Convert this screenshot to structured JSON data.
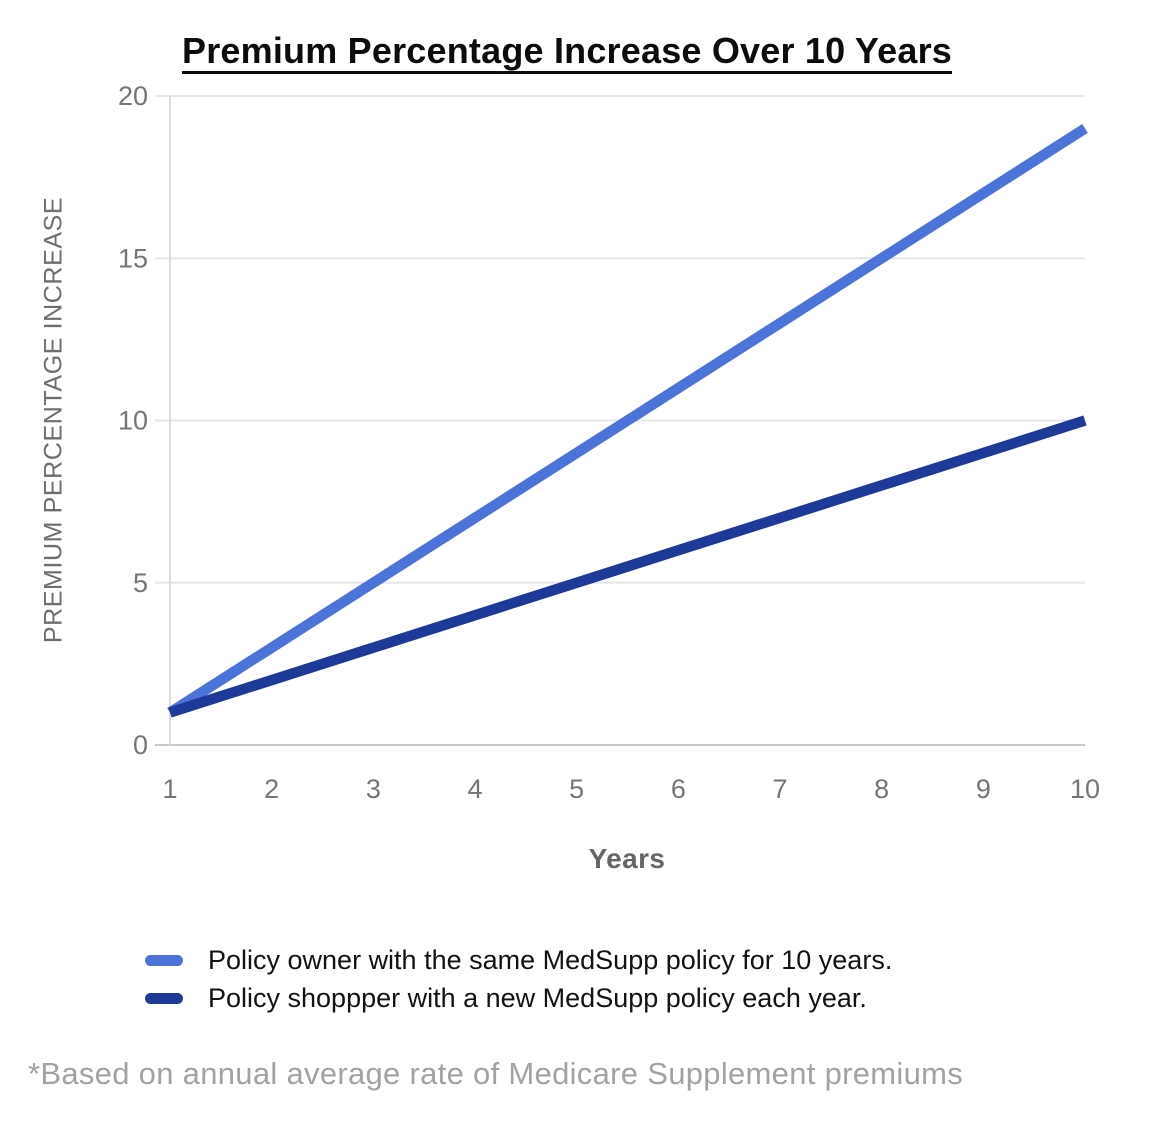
{
  "chart_data": {
    "type": "line",
    "title": "Premium Percentage Increase Over 10 Years",
    "xlabel": "Years",
    "ylabel": "PREMIUM PERCENTAGE INCREASE",
    "x": [
      1,
      2,
      3,
      4,
      5,
      6,
      7,
      8,
      9,
      10
    ],
    "series": [
      {
        "name": "Policy owner with the same MedSupp policy for 10 years.",
        "color": "#4b73da",
        "values": [
          1,
          3,
          5,
          7,
          9,
          11,
          13,
          15,
          17,
          19
        ]
      },
      {
        "name": "Policy shoppper with a new MedSupp policy each year.",
        "color": "#1e3a99",
        "values": [
          1,
          2,
          3,
          4,
          5,
          6,
          7,
          8,
          9,
          10
        ]
      }
    ],
    "ylim": [
      0,
      20
    ],
    "yticks": [
      0,
      5,
      10,
      15,
      20
    ],
    "grid": "horizontal",
    "grid_color": "#e6e6e6",
    "baseline_color": "#c9c9c9",
    "axis_line_color": "#dcdcdc",
    "legend_position": "bottom"
  },
  "footnote": "*Based on annual average rate of Medicare Supplement premiums"
}
